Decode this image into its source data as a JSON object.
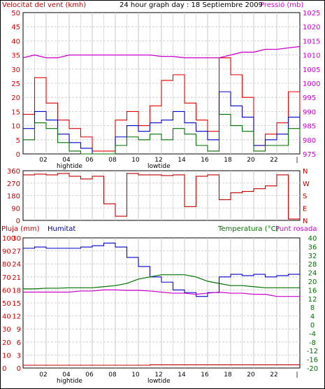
{
  "title": "24 hour graph day : 18 Septiembre 2009",
  "tide": {
    "high": "hightide",
    "low": "lowtide"
  },
  "colors": {
    "red": "#e00000",
    "blue": "#0000cc",
    "green": "#007000",
    "magenta": "#cc00cc",
    "darkred": "#c00000",
    "grid": "#c8c8c8"
  },
  "x_ticks": [
    "02",
    "04",
    "06",
    "08",
    "10",
    "12",
    "14",
    "16",
    "18",
    "20",
    "22",
    ""
  ],
  "panels": {
    "wind": {
      "left_title": "Velocitat del vent (kmh)",
      "right_title": "Pressió (mb)",
      "left_ticks": [
        "0",
        "5",
        "10",
        "15",
        "20",
        "25",
        "30",
        "35",
        "40",
        "45",
        "50"
      ],
      "right_ticks": [
        "975",
        "980",
        "985",
        "990",
        "995",
        "1000",
        "1005",
        "1010",
        "1015",
        "1020",
        "1025"
      ]
    },
    "direction": {
      "left_ticks": [
        "0",
        "90",
        "180",
        "270",
        "360"
      ],
      "right_ticks": [
        "N",
        "E",
        "S",
        "W",
        "N"
      ]
    },
    "humidity": {
      "rain_title": "Pluja (mm)",
      "humidity_title": "Humitat",
      "temp_title": "Temperatura (°C)",
      "dew_title": "Punt rosada",
      "left_ticks": [
        "0",
        "10",
        "20",
        "30",
        "40",
        "50",
        "60",
        "70",
        "80",
        "90",
        "100"
      ],
      "rain_ticks": [
        "0",
        "3",
        "6",
        "9",
        "12",
        "15",
        "18",
        "21",
        "24",
        "27",
        "30"
      ],
      "right_ticks": [
        "-20",
        "-16",
        "-12",
        "-8",
        "-4",
        "0",
        "4",
        "8",
        "12",
        "16",
        "20",
        "24",
        "28",
        "32",
        "36",
        "40"
      ]
    }
  },
  "chart_data": [
    {
      "type": "line",
      "title": "24 hour graph day : 18 Septiembre 2009",
      "x": [
        0,
        1,
        2,
        3,
        4,
        5,
        6,
        7,
        8,
        9,
        10,
        11,
        12,
        13,
        14,
        15,
        16,
        17,
        18,
        19,
        20,
        21,
        22,
        23,
        24
      ],
      "series": [
        {
          "name": "Velocitat del vent (kmh)",
          "axis": "left",
          "color": "#e00000",
          "values": [
            14,
            27,
            18,
            12,
            9,
            6,
            1,
            1,
            12,
            15,
            10,
            17,
            26,
            28,
            18,
            12,
            8,
            34,
            28,
            20,
            3,
            7,
            11,
            22,
            15
          ]
        },
        {
          "name": "Velocitat del vent (kmh)",
          "axis": "left",
          "color": "#0000cc",
          "values": [
            9,
            15,
            12,
            7,
            4,
            2,
            0,
            0,
            6,
            10,
            8,
            11,
            12,
            15,
            11,
            8,
            5,
            22,
            17,
            13,
            3,
            5,
            7,
            13,
            9
          ]
        },
        {
          "name": "Velocitat del vent (kmh)",
          "axis": "left",
          "color": "#007000",
          "values": [
            5,
            11,
            9,
            4,
            1,
            0,
            0,
            0,
            3,
            6,
            5,
            7,
            5,
            9,
            7,
            3,
            1,
            14,
            10,
            8,
            1,
            3,
            3,
            9,
            6
          ]
        },
        {
          "name": "Pressió (mb)",
          "axis": "right",
          "color": "#cc00cc",
          "values": [
            1009,
            1010,
            1009,
            1009,
            1010,
            1010,
            1010,
            1010,
            1010,
            1010,
            1010,
            1010,
            1009.5,
            1009.5,
            1009,
            1009,
            1009,
            1009,
            1010,
            1011,
            1011,
            1012,
            1012,
            1012.5,
            1013
          ]
        }
      ],
      "ylim": [
        0,
        50
      ],
      "y2lim": [
        975,
        1025
      ]
    },
    {
      "type": "line",
      "x": [
        0,
        1,
        2,
        3,
        4,
        5,
        6,
        7,
        8,
        9,
        10,
        11,
        12,
        13,
        14,
        15,
        16,
        17,
        18,
        19,
        20,
        21,
        22,
        23,
        24
      ],
      "series": [
        {
          "name": "",
          "color": "#c00000",
          "values": [
            330,
            335,
            330,
            340,
            320,
            300,
            320,
            120,
            30,
            340,
            330,
            330,
            325,
            330,
            100,
            320,
            330,
            150,
            200,
            210,
            230,
            250,
            330,
            10,
            40
          ]
        }
      ],
      "ylim": [
        0,
        360
      ]
    },
    {
      "type": "line",
      "x": [
        0,
        1,
        2,
        3,
        4,
        5,
        6,
        7,
        8,
        9,
        10,
        11,
        12,
        13,
        14,
        15,
        16,
        17,
        18,
        19,
        20,
        21,
        22,
        23,
        24
      ],
      "series": [
        {
          "name": "Humitat",
          "axis": "left",
          "color": "#0000cc",
          "values": [
            92,
            93,
            92,
            92,
            92,
            93,
            94,
            96,
            93,
            85,
            78,
            70,
            66,
            60,
            58,
            55,
            58,
            70,
            72,
            71,
            72,
            70,
            71,
            72,
            73
          ]
        },
        {
          "name": "Temperatura (°C)",
          "axis": "right",
          "color": "#007000",
          "values": [
            16.5,
            16.5,
            16.8,
            16.8,
            17,
            17,
            17,
            17.5,
            18,
            19,
            21,
            22,
            23,
            23,
            23,
            22,
            20,
            19,
            18,
            18,
            17.5,
            17,
            17,
            17,
            17
          ]
        },
        {
          "name": "Punt rosada",
          "axis": "right",
          "color": "#cc00cc",
          "values": [
            15,
            15,
            15,
            15,
            15,
            15.5,
            15.5,
            16,
            16,
            15.8,
            15.8,
            15.5,
            15,
            14.5,
            14.5,
            14,
            14.5,
            15,
            14.5,
            14.5,
            14,
            14,
            13,
            13,
            13
          ]
        },
        {
          "name": "Pluja (mm)",
          "axis": "rain",
          "color": "#c00000",
          "values": [
            0,
            0,
            0,
            0,
            0,
            0,
            0,
            0,
            0,
            0,
            0,
            0.1,
            0.1,
            0.1,
            0.1,
            0.1,
            0.1,
            0.1,
            0.1,
            0.1,
            0.1,
            0.1,
            0.1,
            0.1,
            0.1
          ]
        }
      ],
      "ylim": [
        0,
        100
      ],
      "y2lim": [
        -20,
        40
      ],
      "y3lim": [
        0,
        30
      ]
    }
  ]
}
